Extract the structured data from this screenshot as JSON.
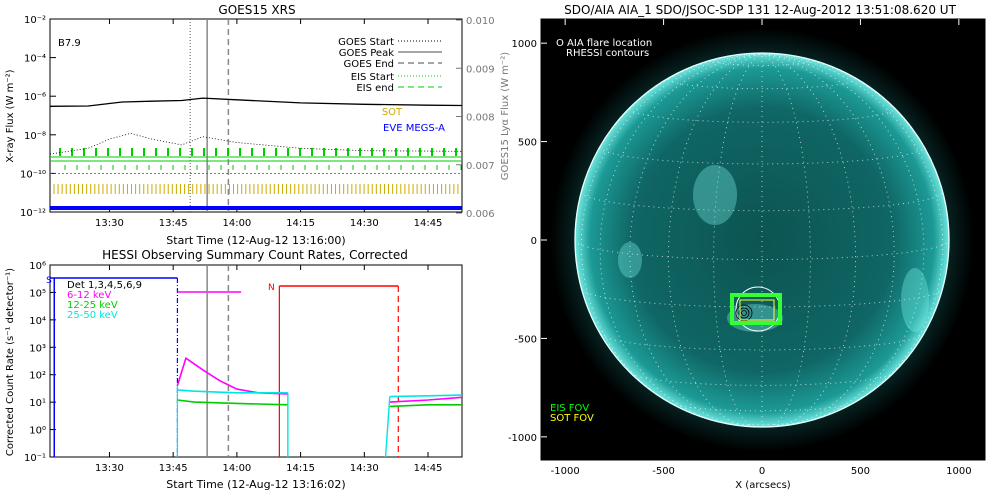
{
  "chart_data": [
    {
      "type": "line",
      "title": "GOES15 XRS",
      "xlabel": "Start Time (12-Aug-12 13:16:00)",
      "ylabel": "X-ray Flux (W m⁻²)",
      "ylabel_right": "GOES15 Lyα Flux (W m⁻²)",
      "x_ticks": [
        "13:30",
        "13:45",
        "14:00",
        "14:15",
        "14:30",
        "14:45"
      ],
      "y_ticks": [
        "10⁻²",
        "10⁻⁴",
        "10⁻⁶",
        "10⁻⁸",
        "10⁻¹⁰",
        "10⁻¹²"
      ],
      "y_right_ticks": [
        "0.010",
        "0.009",
        "0.008",
        "0.007",
        "0.006"
      ],
      "class_label": "B7.9",
      "legend": [
        "GOES Start",
        "GOES Peak",
        "GOES End",
        "EIS Start",
        "EIS end",
        "SOT",
        "EVE MEGS-A"
      ],
      "legend_colors": [
        "#000000",
        "#888888",
        "#888888",
        "#00cc00",
        "#00cc00",
        "#ccaa00",
        "#0000ff"
      ],
      "markers": {
        "goes_start": "13:49",
        "goes_peak": "13:53",
        "goes_end": "13:58"
      },
      "series": [
        {
          "name": "long",
          "x": [
            "13:16",
            "13:25",
            "13:33",
            "13:40",
            "13:47",
            "13:52",
            "14:00",
            "14:15",
            "14:30",
            "14:45",
            "14:53"
          ],
          "values": [
            3e-07,
            3.1e-07,
            5e-07,
            5.5e-07,
            6e-07,
            8e-07,
            6.5e-07,
            4.5e-07,
            3.8e-07,
            3.4e-07,
            3.3e-07
          ]
        },
        {
          "name": "short",
          "x": [
            "13:16",
            "13:25",
            "13:30",
            "13:35",
            "13:40",
            "13:47",
            "13:52",
            "14:00",
            "14:15",
            "14:30",
            "14:53"
          ],
          "values": [
            1e-09,
            2e-09,
            6e-09,
            1.2e-08,
            6e-09,
            3e-09,
            8e-09,
            4e-09,
            2e-09,
            1.5e-09,
            1.4e-09
          ]
        },
        {
          "name": "Lyα",
          "x": [
            "13:16",
            "14:53"
          ],
          "values": [
            0.0068,
            0.0068
          ]
        }
      ]
    },
    {
      "type": "line",
      "title": "HESSI Observing Summary Count Rates, Corrected",
      "xlabel": "Start Time (12-Aug-12 13:16:02)",
      "ylabel": "Corrected Count Rate (s⁻¹ detector⁻¹)",
      "x_ticks": [
        "13:30",
        "13:45",
        "14:00",
        "14:15",
        "14:30",
        "14:45"
      ],
      "y_ticks": [
        "10⁶",
        "10⁵",
        "10⁴",
        "10³",
        "10²",
        "10¹",
        "10⁰",
        "10⁻¹"
      ],
      "legend": [
        "Det 1,3,4,5,6,9",
        "6-12 keV",
        "12-25 keV",
        "25-50 keV"
      ],
      "legend_colors": [
        "#000000",
        "#ff00ff",
        "#00cc00",
        "#00e5e5"
      ],
      "flags": {
        "S": "S",
        "N": "N"
      },
      "markers": {
        "goes_peak": "13:53",
        "goes_end": "13:58",
        "night_start": "14:10",
        "night_end": "14:38"
      },
      "series": [
        {
          "name": "6-12 keV",
          "x": [
            "13:46",
            "13:48",
            "13:52",
            "13:56",
            "14:00",
            "14:05",
            "14:12",
            "14:36",
            "14:45",
            "14:53"
          ],
          "values": [
            40,
            400,
            150,
            60,
            30,
            22,
            20,
            10,
            12,
            15
          ]
        },
        {
          "name": "12-25 keV",
          "x": [
            "13:46",
            "13:50",
            "14:00",
            "14:12",
            "14:36",
            "14:45",
            "14:53"
          ],
          "values": [
            12,
            10,
            9,
            8,
            7,
            8,
            8
          ]
        },
        {
          "name": "25-50 keV",
          "x": [
            "13:46",
            "13:50",
            "14:00",
            "14:12",
            "14:36",
            "14:45",
            "14:53"
          ],
          "values": [
            28,
            25,
            22,
            22,
            16,
            17,
            18
          ]
        }
      ]
    }
  ],
  "image_panel": {
    "title": "SDO/AIA AIA_1 SDO/JSOC-SDP 131 12-Aug-2012 13:51:08.620 UT",
    "legend_top": [
      "O AIA flare location",
      "RHESSI contours"
    ],
    "legend_bottom": [
      "EIS FOV",
      "SOT FOV"
    ],
    "legend_bottom_colors": [
      "#00ff00",
      "#ffff00"
    ],
    "xlabel": "X (arcsecs)",
    "x_ticks": [
      "-1000",
      "-500",
      "0",
      "500",
      "1000"
    ],
    "y_ticks": [
      "1000",
      "500",
      "0",
      "-500",
      "-1000"
    ]
  }
}
